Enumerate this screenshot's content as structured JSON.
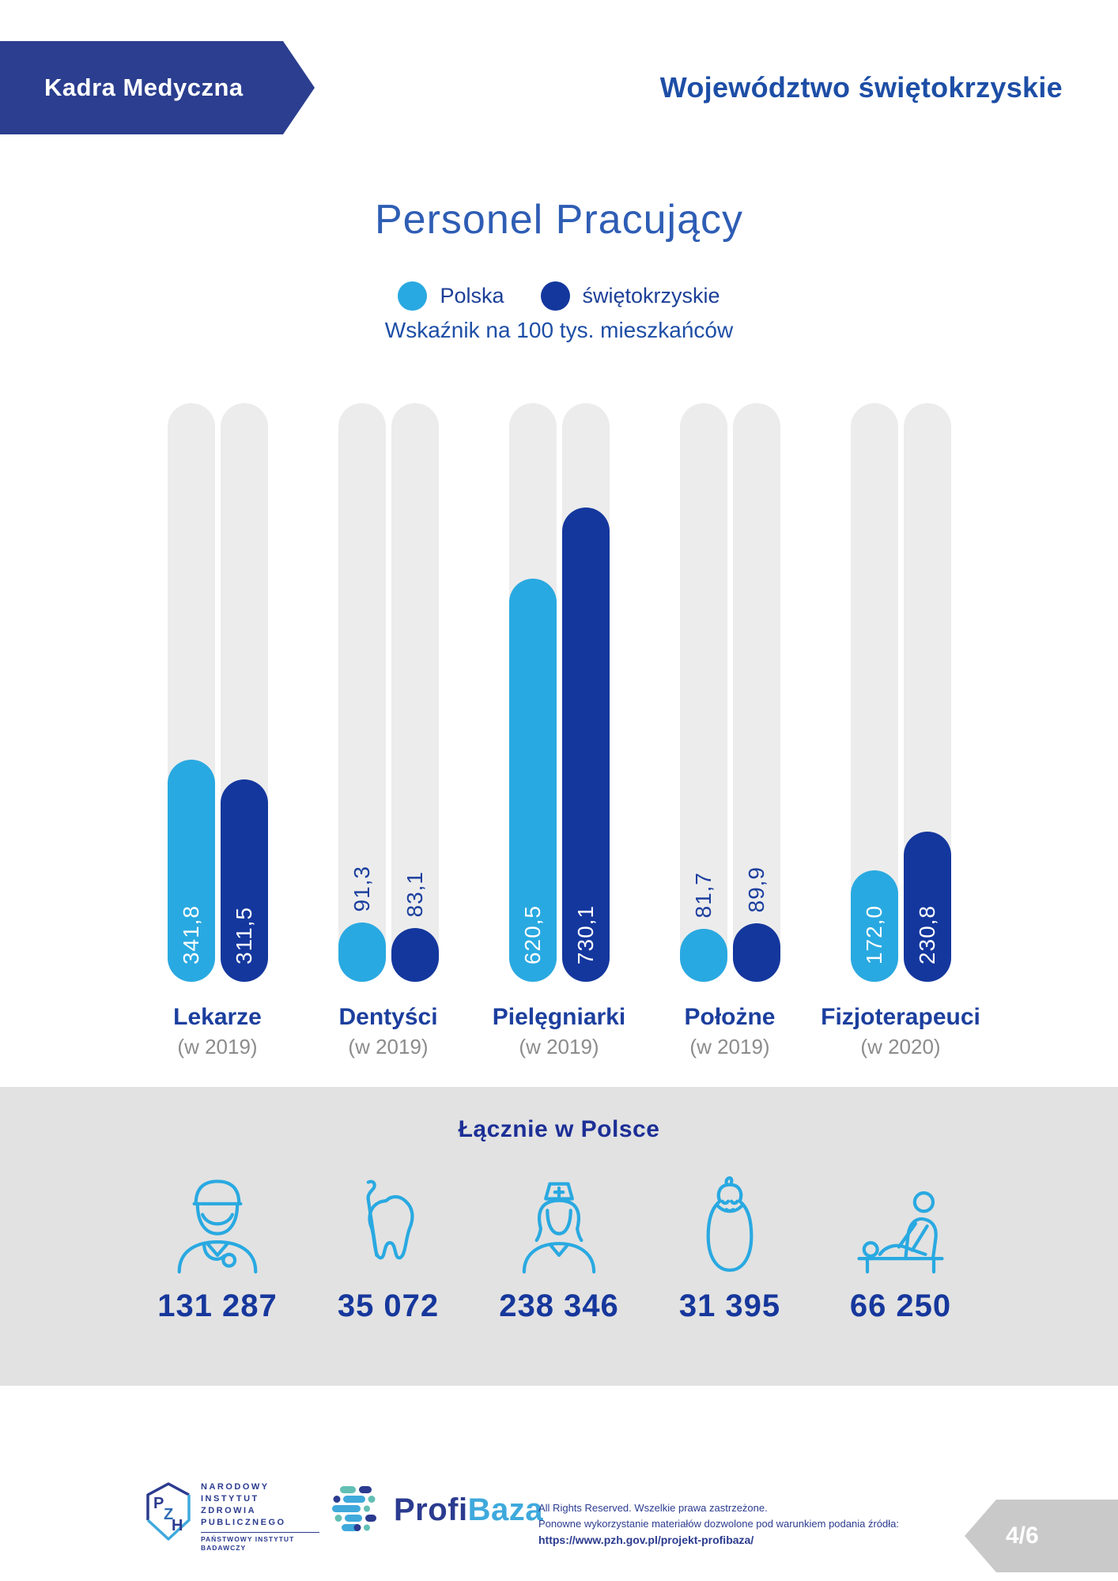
{
  "header": {
    "banner_label": "Kadra Medyczna",
    "region_title": "Województwo świętokrzyskie"
  },
  "chart_data": {
    "type": "bar",
    "title": "Personel Pracujący",
    "subtitle": "Wskaźnik na 100 tys. mieszkańców",
    "categories": [
      "Lekarze",
      "Dentyści",
      "Pielęgniarki",
      "Położne",
      "Fizjoterapeuci"
    ],
    "category_notes": [
      "(w 2019)",
      "(w 2019)",
      "(w 2019)",
      "(w 2019)",
      "(w 2020)"
    ],
    "series": [
      {
        "name": "Polska",
        "color": "#29A9E1",
        "values": [
          341.8,
          91.3,
          620.5,
          81.7,
          172.0
        ],
        "labels": [
          "341,8",
          "91,3",
          "620,5",
          "81,7",
          "172,0"
        ]
      },
      {
        "name": "świętokrzyskie",
        "color": "#14379E",
        "values": [
          311.5,
          83.1,
          730.1,
          89.9,
          230.8
        ],
        "labels": [
          "311,5",
          "83,1",
          "730,1",
          "89,9",
          "230,8"
        ]
      }
    ],
    "ylim": [
      0,
      890
    ],
    "grid": false,
    "legend_position": "top",
    "totals_in_poland": {
      "label": "Łącznie w Polsce",
      "values": [
        131287,
        35072,
        238346,
        31395,
        66250
      ]
    }
  },
  "totals": {
    "title": "Łącznie w Polsce",
    "items": [
      {
        "icon": "doctor-icon",
        "value": "131 287"
      },
      {
        "icon": "tooth-icon",
        "value": "35 072"
      },
      {
        "icon": "nurse-icon",
        "value": "238 346"
      },
      {
        "icon": "baby-icon",
        "value": "31 395"
      },
      {
        "icon": "physiotherapist-icon",
        "value": "66 250"
      }
    ]
  },
  "footer": {
    "pzh": {
      "lines": [
        "NARODOWY",
        "INSTYTUT",
        "ZDROWIA",
        "PUBLICZNEGO"
      ],
      "subline1": "PAŃSTWOWY INSTYTUT",
      "subline2": "BADAWCZY"
    },
    "profibaza": {
      "part1": "Profi",
      "part2": "Baza"
    },
    "rights_line1": "All Rights Reserved. Wszelkie prawa zastrzeżone.",
    "rights_line2": "Ponowne wykorzystanie materiałów dozwolone pod warunkiem podania źródła:",
    "rights_url": "https://www.pzh.gov.pl/projekt-profibaza/",
    "page_badge": "4/6"
  },
  "colors": {
    "polska": "#29A9E1",
    "swietokrzyskie": "#14379E",
    "track": "#ECECEC",
    "band": "#E2E2E2",
    "accent_navy": "#1C3F9E",
    "banner_navy": "#2B3E8F",
    "badge_gray": "#C9C9C9"
  }
}
